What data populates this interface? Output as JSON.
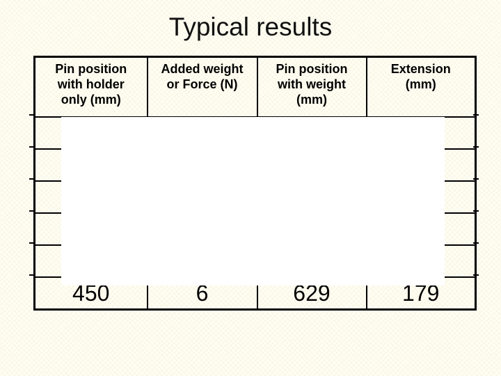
{
  "slide": {
    "title": "Typical results",
    "background_color": "#fffef2",
    "text_color": "#000000",
    "table_border_color": "#000000",
    "overlay_color": "#ffffff"
  },
  "table": {
    "headers": [
      "Pin position\nwith holder\nonly (mm)",
      "Added weight\nor Force (N)",
      "Pin position\nwith weight\n(mm)",
      "Extension\n(mm)"
    ],
    "rows": [
      [
        "",
        "",
        "",
        ""
      ],
      [
        "",
        "",
        "",
        ""
      ],
      [
        "",
        "",
        "",
        ""
      ],
      [
        "",
        "",
        "",
        ""
      ],
      [
        "",
        "",
        "",
        ""
      ],
      [
        "450",
        "6",
        "629",
        "179"
      ]
    ]
  }
}
